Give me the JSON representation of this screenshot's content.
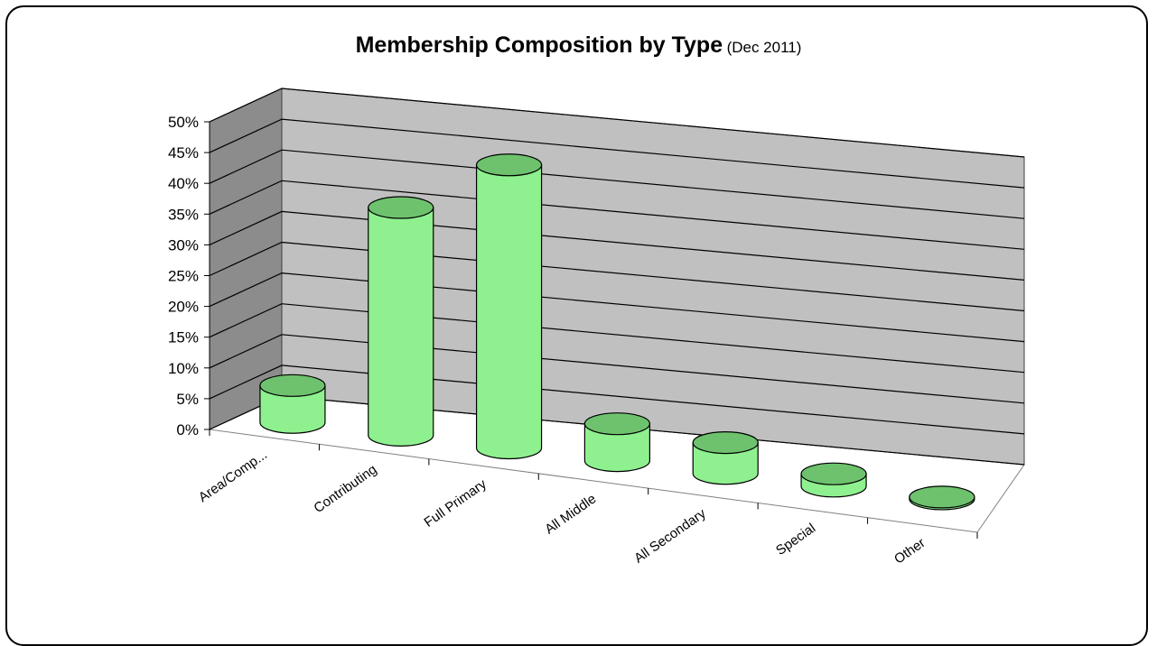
{
  "chart_data": {
    "type": "bar",
    "style": "3d-cylinder",
    "title": "Membership Composition by Type",
    "subtitle": "(Dec 2011)",
    "categories": [
      "Area/Comp...",
      "Contributing",
      "Full Primary",
      "All Middle",
      "All Secondary",
      "Special",
      "Other"
    ],
    "values": [
      6,
      37,
      46,
      6,
      5,
      2,
      0.3
    ],
    "ylim": [
      0,
      50
    ],
    "yticks": [
      "0%",
      "5%",
      "10%",
      "15%",
      "20%",
      "25%",
      "30%",
      "35%",
      "40%",
      "45%",
      "50%"
    ],
    "grid": true,
    "colors": {
      "bar": "#8ff08f",
      "bar_top": "#6ec26e",
      "wall": "#c0c0c0",
      "side_wall": "#8c8c8c",
      "floor": "#ffffff"
    }
  }
}
